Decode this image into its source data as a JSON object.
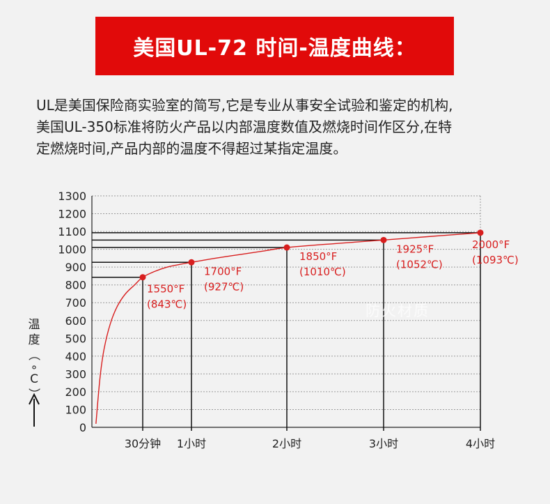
{
  "banner": {
    "title": "美国UL-72 时间-温度曲线："
  },
  "description": {
    "lines": [
      "UL是美国保险商实验室的简写,它是专业从事安全试验和鉴定的机构,",
      "美国UL-350标准将防火产品以内部温度数值及燃烧时间作区分,在特",
      "定燃烧时间,产品内部的温度不得超过某指定温度。"
    ]
  },
  "watermark": "防火材质",
  "colors": {
    "banner": "#e10a0a",
    "curve": "#d81e1e",
    "label": "#d81e1e",
    "grid": "#9a9a9a",
    "axis": "#222222"
  },
  "chart_data": {
    "type": "line",
    "title": "",
    "xlabel": "",
    "ylabel": "温度（°C）",
    "ylim": [
      0,
      1300
    ],
    "y_ticks": [
      0,
      100,
      200,
      300,
      400,
      500,
      600,
      700,
      800,
      900,
      1000,
      1100,
      1200,
      1300
    ],
    "x_categories": [
      "30分钟",
      "1小时",
      "2小时",
      "3小时",
      "4小时"
    ],
    "x_hours": [
      0.5,
      1,
      2,
      3,
      4
    ],
    "grid": true,
    "series": [
      {
        "curve_hours": [
          0.04,
          0.08,
          0.12,
          0.18,
          0.25,
          0.33,
          0.42,
          0.5,
          0.62,
          0.75,
          0.88,
          1,
          1.25,
          1.5,
          1.75,
          2,
          2.5,
          3,
          3.5,
          4
        ],
        "curve_temps": [
          20,
          280,
          440,
          580,
          680,
          750,
          800,
          843,
          875,
          900,
          915,
          927,
          950,
          970,
          990,
          1010,
          1032,
          1052,
          1073,
          1093
        ],
        "points": [
          {
            "hours": 0.5,
            "temp_c": 843,
            "label_f": "1550°F",
            "label_c": "(843℃)"
          },
          {
            "hours": 1,
            "temp_c": 927,
            "label_f": "1700°F",
            "label_c": "(927℃)"
          },
          {
            "hours": 2,
            "temp_c": 1010,
            "label_f": "1850°F",
            "label_c": "(1010℃)"
          },
          {
            "hours": 3,
            "temp_c": 1052,
            "label_f": "1925°F",
            "label_c": "(1052℃)"
          },
          {
            "hours": 4,
            "temp_c": 1093,
            "label_f": "2000°F",
            "label_c": "(1093℃)"
          }
        ]
      }
    ]
  }
}
